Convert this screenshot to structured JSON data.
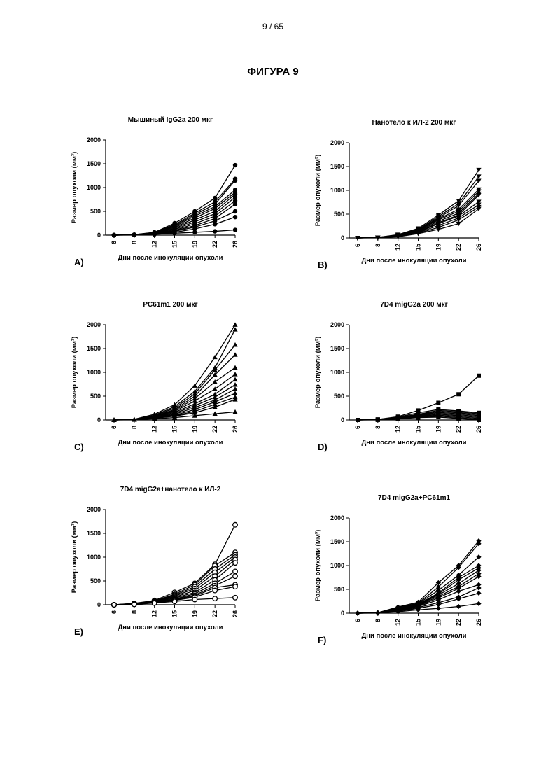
{
  "page_number": "9 / 65",
  "figure_title": "ФИГУРА 9",
  "chart_data": [
    {
      "type": "line",
      "marker": "circle-filled",
      "title": "Мышиный IgG2a 200 мкг",
      "letter": "A)",
      "xlabel": "Дни после инокуляции опухоли",
      "ylabel": "Размер опухоли (мм³)",
      "x": [
        "6",
        "8",
        "12",
        "15",
        "19",
        "22",
        "26"
      ],
      "yticks": [
        "0",
        "500",
        "1000",
        "1500",
        "2000"
      ],
      "ylim": [
        0,
        2000
      ],
      "series": [
        {
          "values": [
            0,
            10,
            60,
            250,
            500,
            780,
            1470
          ]
        },
        {
          "values": [
            0,
            10,
            55,
            220,
            460,
            700,
            1180
          ]
        },
        {
          "values": [
            0,
            8,
            50,
            200,
            430,
            650,
            1150
          ]
        },
        {
          "values": [
            0,
            8,
            45,
            180,
            400,
            600,
            950
          ]
        },
        {
          "values": [
            0,
            7,
            40,
            160,
            360,
            560,
            900
          ]
        },
        {
          "values": [
            0,
            6,
            35,
            140,
            320,
            500,
            860
          ]
        },
        {
          "values": [
            0,
            6,
            30,
            120,
            280,
            450,
            800
          ]
        },
        {
          "values": [
            0,
            5,
            28,
            100,
            240,
            400,
            720
          ]
        },
        {
          "values": [
            0,
            5,
            25,
            90,
            200,
            350,
            650
          ]
        },
        {
          "values": [
            0,
            4,
            20,
            80,
            170,
            300,
            500
          ]
        },
        {
          "values": [
            0,
            4,
            18,
            60,
            130,
            230,
            380
          ]
        },
        {
          "values": [
            0,
            3,
            15,
            40,
            60,
            80,
            110
          ]
        }
      ]
    },
    {
      "type": "line",
      "marker": "triangle-down-filled",
      "title": "Нанотело к ИЛ-2 200 мкг",
      "letter": "B)",
      "xlabel": "Дни после инокуляции опухоли",
      "ylabel": "Размер опухоли (мм³)",
      "x": [
        "6",
        "8",
        "12",
        "15",
        "19",
        "22",
        "26"
      ],
      "yticks": [
        "0",
        "500",
        "1000",
        "1500",
        "2000"
      ],
      "ylim": [
        0,
        2000
      ],
      "series": [
        {
          "values": [
            0,
            10,
            70,
            200,
            480,
            780,
            1430
          ]
        },
        {
          "values": [
            0,
            10,
            65,
            180,
            450,
            720,
            1290
          ]
        },
        {
          "values": [
            0,
            9,
            60,
            170,
            420,
            680,
            1200
          ]
        },
        {
          "values": [
            0,
            8,
            55,
            160,
            400,
            600,
            1020
          ]
        },
        {
          "values": [
            0,
            8,
            50,
            150,
            380,
            560,
            980
          ]
        },
        {
          "values": [
            0,
            7,
            45,
            140,
            350,
            520,
            930
          ]
        },
        {
          "values": [
            0,
            6,
            40,
            130,
            320,
            480,
            900
          ]
        },
        {
          "values": [
            0,
            6,
            38,
            120,
            300,
            460,
            760
          ]
        },
        {
          "values": [
            0,
            5,
            35,
            110,
            260,
            420,
            700
          ]
        },
        {
          "values": [
            0,
            5,
            30,
            100,
            220,
            380,
            650
          ]
        },
        {
          "values": [
            0,
            4,
            25,
            90,
            180,
            300,
            610
          ]
        }
      ]
    },
    {
      "type": "line",
      "marker": "triangle-up-filled",
      "title": "PC61m1 200 мкг",
      "letter": "C)",
      "xlabel": "Дни после инокуляции опухоли",
      "ylabel": "Размер опухоли (мм³)",
      "x": [
        "6",
        "8",
        "12",
        "15",
        "19",
        "22",
        "26"
      ],
      "yticks": [
        "0",
        "500",
        "1000",
        "1500",
        "2000"
      ],
      "ylim": [
        0,
        2000
      ],
      "series": [
        {
          "values": [
            0,
            15,
            120,
            320,
            720,
            1320,
            2000
          ]
        },
        {
          "values": [
            0,
            12,
            100,
            280,
            600,
            1100,
            1900
          ]
        },
        {
          "values": [
            0,
            12,
            90,
            250,
            550,
            1050,
            1580
          ]
        },
        {
          "values": [
            0,
            10,
            80,
            220,
            500,
            950,
            1370
          ]
        },
        {
          "values": [
            0,
            10,
            75,
            200,
            450,
            800,
            1100
          ]
        },
        {
          "values": [
            0,
            9,
            70,
            180,
            400,
            650,
            960
          ]
        },
        {
          "values": [
            0,
            8,
            60,
            160,
            340,
            540,
            850
          ]
        },
        {
          "values": [
            0,
            8,
            55,
            140,
            300,
            480,
            740
          ]
        },
        {
          "values": [
            0,
            7,
            50,
            120,
            260,
            420,
            650
          ]
        },
        {
          "values": [
            0,
            6,
            45,
            100,
            220,
            380,
            560
          ]
        },
        {
          "values": [
            0,
            6,
            40,
            90,
            180,
            330,
            480
          ]
        },
        {
          "values": [
            0,
            5,
            35,
            80,
            150,
            270,
            430
          ]
        },
        {
          "values": [
            0,
            4,
            25,
            50,
            90,
            130,
            170
          ]
        }
      ]
    },
    {
      "type": "line",
      "marker": "square-filled",
      "title": "7D4 migG2a 200 мкг",
      "letter": "D)",
      "xlabel": "Дни после инокуляции опухоли",
      "ylabel": "Размер опухоли (мм³)",
      "x": [
        "6",
        "8",
        "12",
        "15",
        "19",
        "22",
        "26"
      ],
      "yticks": [
        "0",
        "500",
        "1000",
        "1500",
        "2000"
      ],
      "ylim": [
        0,
        2000
      ],
      "series": [
        {
          "values": [
            0,
            10,
            70,
            200,
            360,
            540,
            930
          ]
        },
        {
          "values": [
            0,
            10,
            60,
            150,
            220,
            190,
            150
          ]
        },
        {
          "values": [
            0,
            9,
            55,
            120,
            200,
            170,
            130
          ]
        },
        {
          "values": [
            0,
            8,
            50,
            110,
            180,
            150,
            110
          ]
        },
        {
          "values": [
            0,
            7,
            45,
            100,
            160,
            130,
            90
          ]
        },
        {
          "values": [
            0,
            6,
            40,
            90,
            140,
            110,
            70
          ]
        },
        {
          "values": [
            0,
            6,
            35,
            80,
            120,
            90,
            50
          ]
        },
        {
          "values": [
            0,
            5,
            30,
            70,
            100,
            70,
            30
          ]
        },
        {
          "values": [
            0,
            4,
            25,
            60,
            80,
            50,
            10
          ]
        },
        {
          "values": [
            0,
            3,
            20,
            50,
            60,
            30,
            0
          ]
        }
      ]
    },
    {
      "type": "line",
      "marker": "circle-open",
      "title": "7D4 migG2a+нанотело к ИЛ-2",
      "letter": "E)",
      "xlabel": "Дни после инокуляции опухоли",
      "ylabel": "Размер опухоли (мм³)",
      "x": [
        "6",
        "8",
        "12",
        "15",
        "19",
        "22",
        "26"
      ],
      "yticks": [
        "0",
        "500",
        "1000",
        "1500",
        "2000"
      ],
      "ylim": [
        0,
        2000
      ],
      "series": [
        {
          "values": [
            0,
            30,
            90,
            260,
            450,
            850,
            1680
          ]
        },
        {
          "values": [
            0,
            25,
            80,
            220,
            420,
            820,
            1100
          ]
        },
        {
          "values": [
            0,
            25,
            75,
            200,
            380,
            750,
            1050
          ]
        },
        {
          "values": [
            0,
            20,
            70,
            180,
            340,
            680,
            1000
          ]
        },
        {
          "values": [
            0,
            20,
            65,
            160,
            300,
            600,
            950
          ]
        },
        {
          "values": [
            0,
            18,
            60,
            140,
            260,
            520,
            880
          ]
        },
        {
          "values": [
            0,
            15,
            55,
            120,
            230,
            450,
            700
          ]
        },
        {
          "values": [
            0,
            15,
            50,
            110,
            200,
            400,
            600
          ]
        },
        {
          "values": [
            0,
            12,
            45,
            100,
            180,
            360,
            420
          ]
        },
        {
          "values": [
            0,
            10,
            40,
            90,
            160,
            300,
            380
          ]
        },
        {
          "values": [
            0,
            8,
            35,
            70,
            110,
            130,
            150
          ]
        }
      ]
    },
    {
      "type": "line",
      "marker": "diamond-filled",
      "title": "7D4 migG2a+PC61m1",
      "letter": "F)",
      "xlabel": "Дни после инокуляции опухоли",
      "ylabel": "Размер опухоли (мм³)",
      "x": [
        "6",
        "8",
        "12",
        "15",
        "19",
        "22",
        "26"
      ],
      "yticks": [
        "0",
        "500",
        "1000",
        "1500",
        "2000"
      ],
      "ylim": [
        0,
        2000
      ],
      "series": [
        {
          "values": [
            0,
            10,
            130,
            230,
            640,
            1000,
            1520
          ]
        },
        {
          "values": [
            0,
            10,
            120,
            210,
            550,
            960,
            1460
          ]
        },
        {
          "values": [
            0,
            9,
            110,
            200,
            480,
            800,
            1180
          ]
        },
        {
          "values": [
            0,
            8,
            100,
            190,
            420,
            750,
            1000
          ]
        },
        {
          "values": [
            0,
            8,
            90,
            180,
            400,
            700,
            950
          ]
        },
        {
          "values": [
            0,
            7,
            80,
            170,
            380,
            620,
            900
          ]
        },
        {
          "values": [
            0,
            6,
            70,
            160,
            350,
            560,
            830
          ]
        },
        {
          "values": [
            0,
            6,
            60,
            150,
            320,
            520,
            770
          ]
        },
        {
          "values": [
            0,
            5,
            55,
            140,
            280,
            460,
            600
          ]
        },
        {
          "values": [
            0,
            5,
            50,
            120,
            220,
            340,
            530
          ]
        },
        {
          "values": [
            0,
            4,
            40,
            100,
            180,
            300,
            420
          ]
        },
        {
          "values": [
            0,
            3,
            30,
            70,
            100,
            140,
            200
          ]
        }
      ]
    }
  ]
}
